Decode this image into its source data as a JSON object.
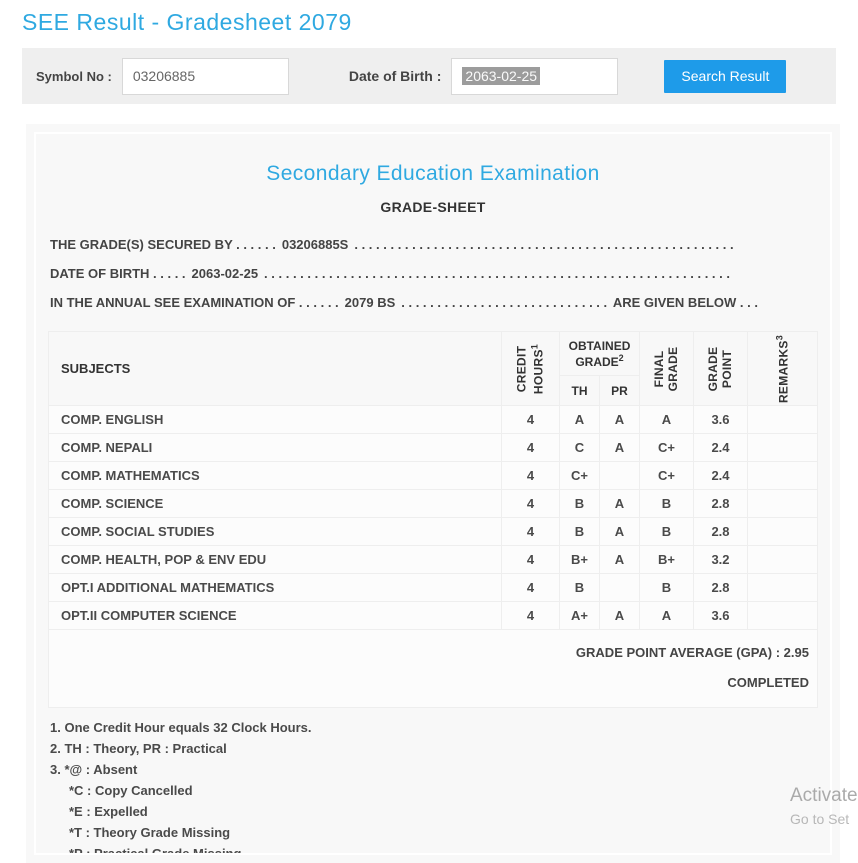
{
  "colors": {
    "accent_blue": "#2fa9e1",
    "button_blue": "#1e9be9",
    "selection_gray": "#9c9c9c"
  },
  "header": {
    "title": "SEE Result - Gradesheet 2079"
  },
  "form": {
    "symbol_label": "Symbol No :",
    "symbol_value": "03206885",
    "dob_label": "Date of Birth :",
    "dob_value": "2063-02-25",
    "search_button": "Search Result"
  },
  "gradesheet": {
    "title": "Secondary Education Examination",
    "subtitle": "GRADE-SHEET",
    "line1_pre": "THE GRADE(S) SECURED BY . . . . . .",
    "line1_value": "03206885S",
    "line2_pre": "DATE OF BIRTH . . . . .",
    "line2_value": "2063-02-25",
    "line3_pre": "IN THE ANNUAL SEE EXAMINATION OF . . . . . .",
    "line3_value": "2079 BS",
    "line3_suffix": "ARE GIVEN BELOW . . .",
    "dot_fill": ". . . . . . . . . . . . . . . . . . . . . . . . . . . . . . . . . . . . . . . . . . . . . . . . . . . . . . . . . . . . . . . . . . . . . . . . . . . . . . . . . . . . . . . . . . . ."
  },
  "table": {
    "headers": {
      "subjects": "SUBJECTS",
      "credit_hours": "CREDIT HOURS",
      "credit_hours_sup": "1",
      "obtained_grade": "OBTAINED GRADE",
      "obtained_grade_sup": "2",
      "th": "TH",
      "pr": "PR",
      "final_grade": "FINAL GRADE",
      "grade_point": "GRADE POINT",
      "remarks": "REMARKS",
      "remarks_sup": "3"
    },
    "rows": [
      {
        "subject": "COMP. ENGLISH",
        "credit": "4",
        "th": "A",
        "pr": "A",
        "final": "A",
        "gp": "3.6",
        "remarks": ""
      },
      {
        "subject": "COMP. NEPALI",
        "credit": "4",
        "th": "C",
        "pr": "A",
        "final": "C+",
        "gp": "2.4",
        "remarks": ""
      },
      {
        "subject": "COMP. MATHEMATICS",
        "credit": "4",
        "th": "C+",
        "pr": "",
        "final": "C+",
        "gp": "2.4",
        "remarks": ""
      },
      {
        "subject": "COMP. SCIENCE",
        "credit": "4",
        "th": "B",
        "pr": "A",
        "final": "B",
        "gp": "2.8",
        "remarks": ""
      },
      {
        "subject": "COMP. SOCIAL STUDIES",
        "credit": "4",
        "th": "B",
        "pr": "A",
        "final": "B",
        "gp": "2.8",
        "remarks": ""
      },
      {
        "subject": "COMP. HEALTH, POP & ENV EDU",
        "credit": "4",
        "th": "B+",
        "pr": "A",
        "final": "B+",
        "gp": "3.2",
        "remarks": ""
      },
      {
        "subject": "OPT.I ADDITIONAL MATHEMATICS",
        "credit": "4",
        "th": "B",
        "pr": "",
        "final": "B",
        "gp": "2.8",
        "remarks": ""
      },
      {
        "subject": "OPT.II COMPUTER SCIENCE",
        "credit": "4",
        "th": "A+",
        "pr": "A",
        "final": "A",
        "gp": "3.6",
        "remarks": ""
      }
    ],
    "gpa_line": "GRADE POINT AVERAGE (GPA) : 2.95",
    "status": "COMPLETED"
  },
  "footnotes": {
    "items": [
      "1. One Credit Hour equals 32 Clock Hours.",
      "2. TH : Theory, PR : Practical",
      "3. *@ : Absent"
    ],
    "sub_items": [
      "*C : Copy Cancelled",
      "*E : Expelled",
      "*T : Theory Grade Missing",
      "*P : Practical Grade Missing"
    ]
  },
  "watermark": {
    "line1": "Activate",
    "line2": "Go to Set"
  }
}
